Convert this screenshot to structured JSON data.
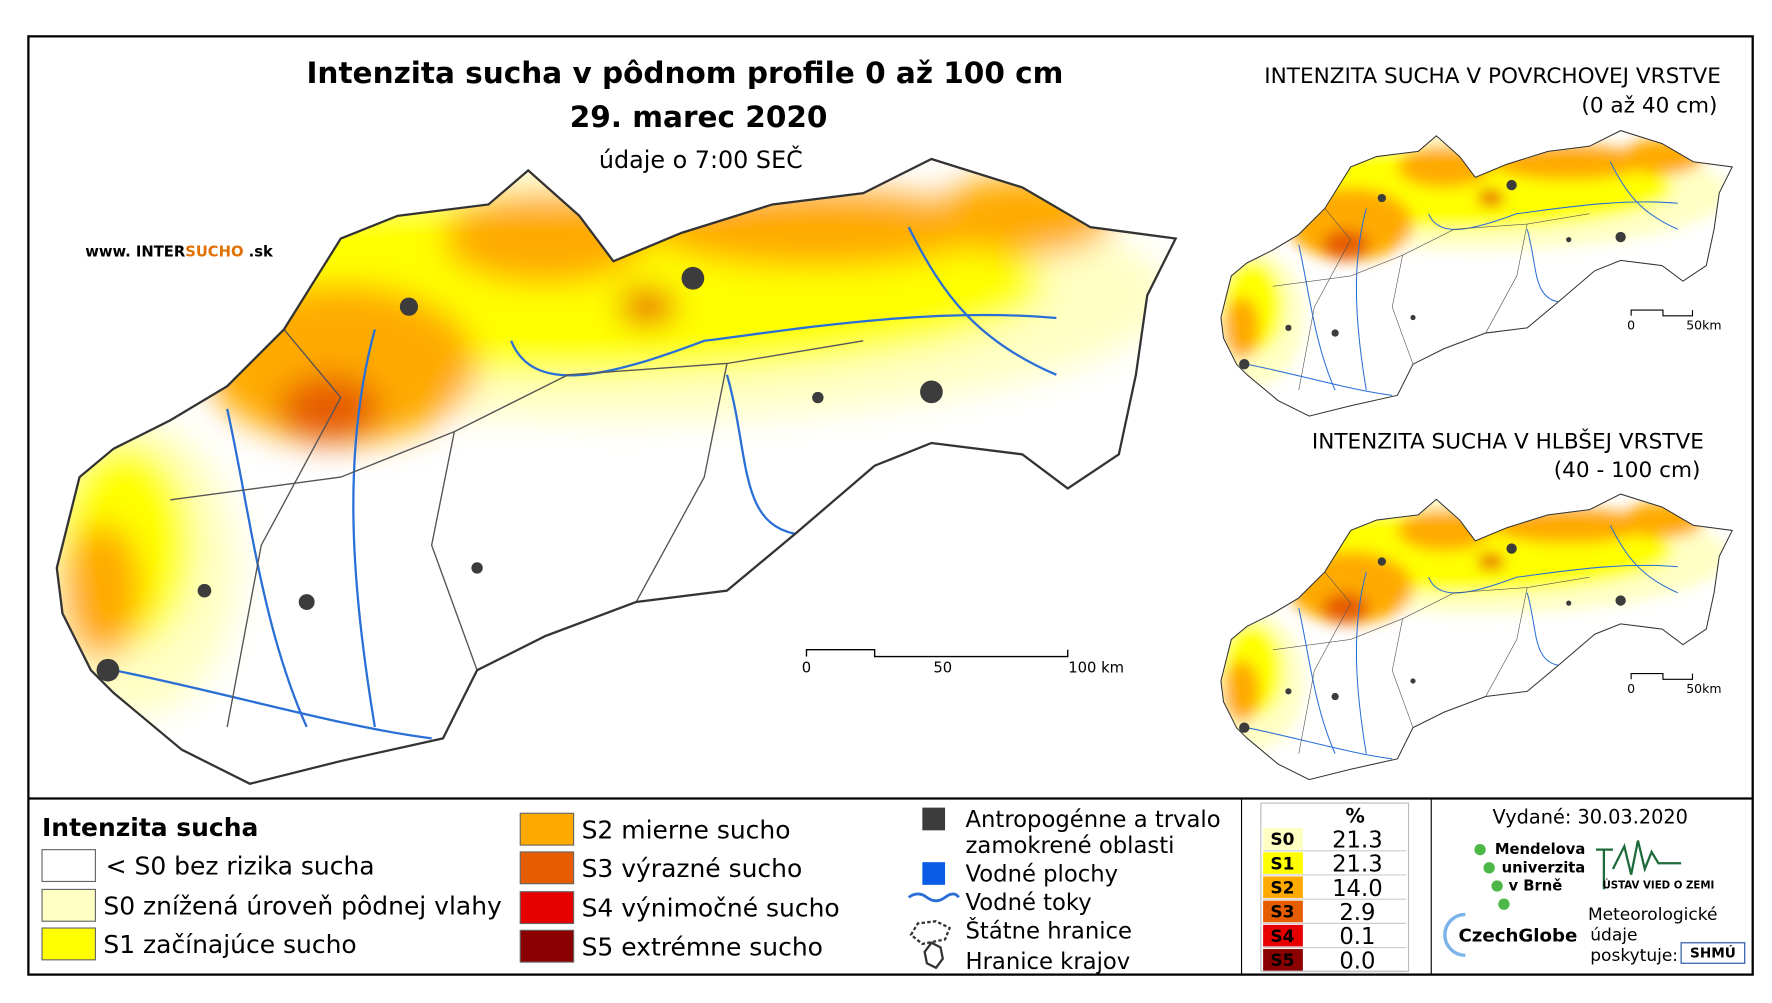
{
  "title": "Intenzita sucha v pôdnom profile 0 až 100 cm",
  "date": "29. marec 2020",
  "time_note": "údaje o 7:00 SEČ",
  "website": {
    "prefix": "www. INTER",
    "highlight": "SUCHO",
    "suffix": " .sk"
  },
  "main_scale": [
    "0",
    "50",
    "100 km"
  ],
  "inset_top": {
    "title": "INTENZITA SUCHA V POVRCHOVEJ VRSTVE",
    "subtitle": "(0 až 40 cm)",
    "scale": [
      "0",
      "50km"
    ]
  },
  "inset_bottom": {
    "title": "INTENZITA SUCHA V HLBŠEJ VRSTVE",
    "subtitle": "(40 - 100 cm)",
    "scale": [
      "0",
      "50km"
    ]
  },
  "legend": {
    "title": "Intenzita sucha",
    "items": [
      {
        "label": "< S0 bez rizika sucha",
        "color": "#ffffff"
      },
      {
        "label": "S0 znížená úroveň pôdnej vlahy",
        "color": "#ffffc4"
      },
      {
        "label": "S1 začínajúce sucho",
        "color": "#ffff00"
      },
      {
        "label": "S2 mierne sucho",
        "color": "#ffaa00"
      },
      {
        "label": "S3 výrazné sucho",
        "color": "#e65c00"
      },
      {
        "label": "S4 výnimočné sucho",
        "color": "#e60000"
      },
      {
        "label": "S5 extrémne sucho",
        "color": "#8b0000"
      }
    ]
  },
  "layers": [
    {
      "label1": "Antropogénne a trvalo",
      "label2": "zamokrené oblasti",
      "color": "#3c3c3c"
    },
    {
      "label1": "Vodné plochy",
      "color": "#0a5ce6"
    },
    {
      "label1": "Vodné toky",
      "color": "#2a6fd6"
    },
    {
      "label1": "Štátne hranice"
    },
    {
      "label1": "Hranice krajov"
    }
  ],
  "stats": {
    "header": "%",
    "rows": [
      {
        "class": "S0",
        "value": "21.3",
        "color": "#ffffc4"
      },
      {
        "class": "S1",
        "value": "21.3",
        "color": "#ffff00"
      },
      {
        "class": "S2",
        "value": "14.0",
        "color": "#ffaa00"
      },
      {
        "class": "S3",
        "value": "2.9",
        "color": "#e65c00"
      },
      {
        "class": "S4",
        "value": "0.1",
        "color": "#e60000"
      },
      {
        "class": "S5",
        "value": "0.0",
        "color": "#8b0000"
      }
    ]
  },
  "issued": "Vydané: 30.03.2020",
  "logos": {
    "mendel": [
      "Mendelova",
      "univerzita",
      "v Brně"
    ],
    "ustav": "ÚSTAV VIED O ZEMI",
    "czechglobe": "CzechGlobe",
    "provider": [
      "Meteorologické",
      "údaje",
      "poskytuje:"
    ],
    "shmu": "SHMÚ"
  }
}
